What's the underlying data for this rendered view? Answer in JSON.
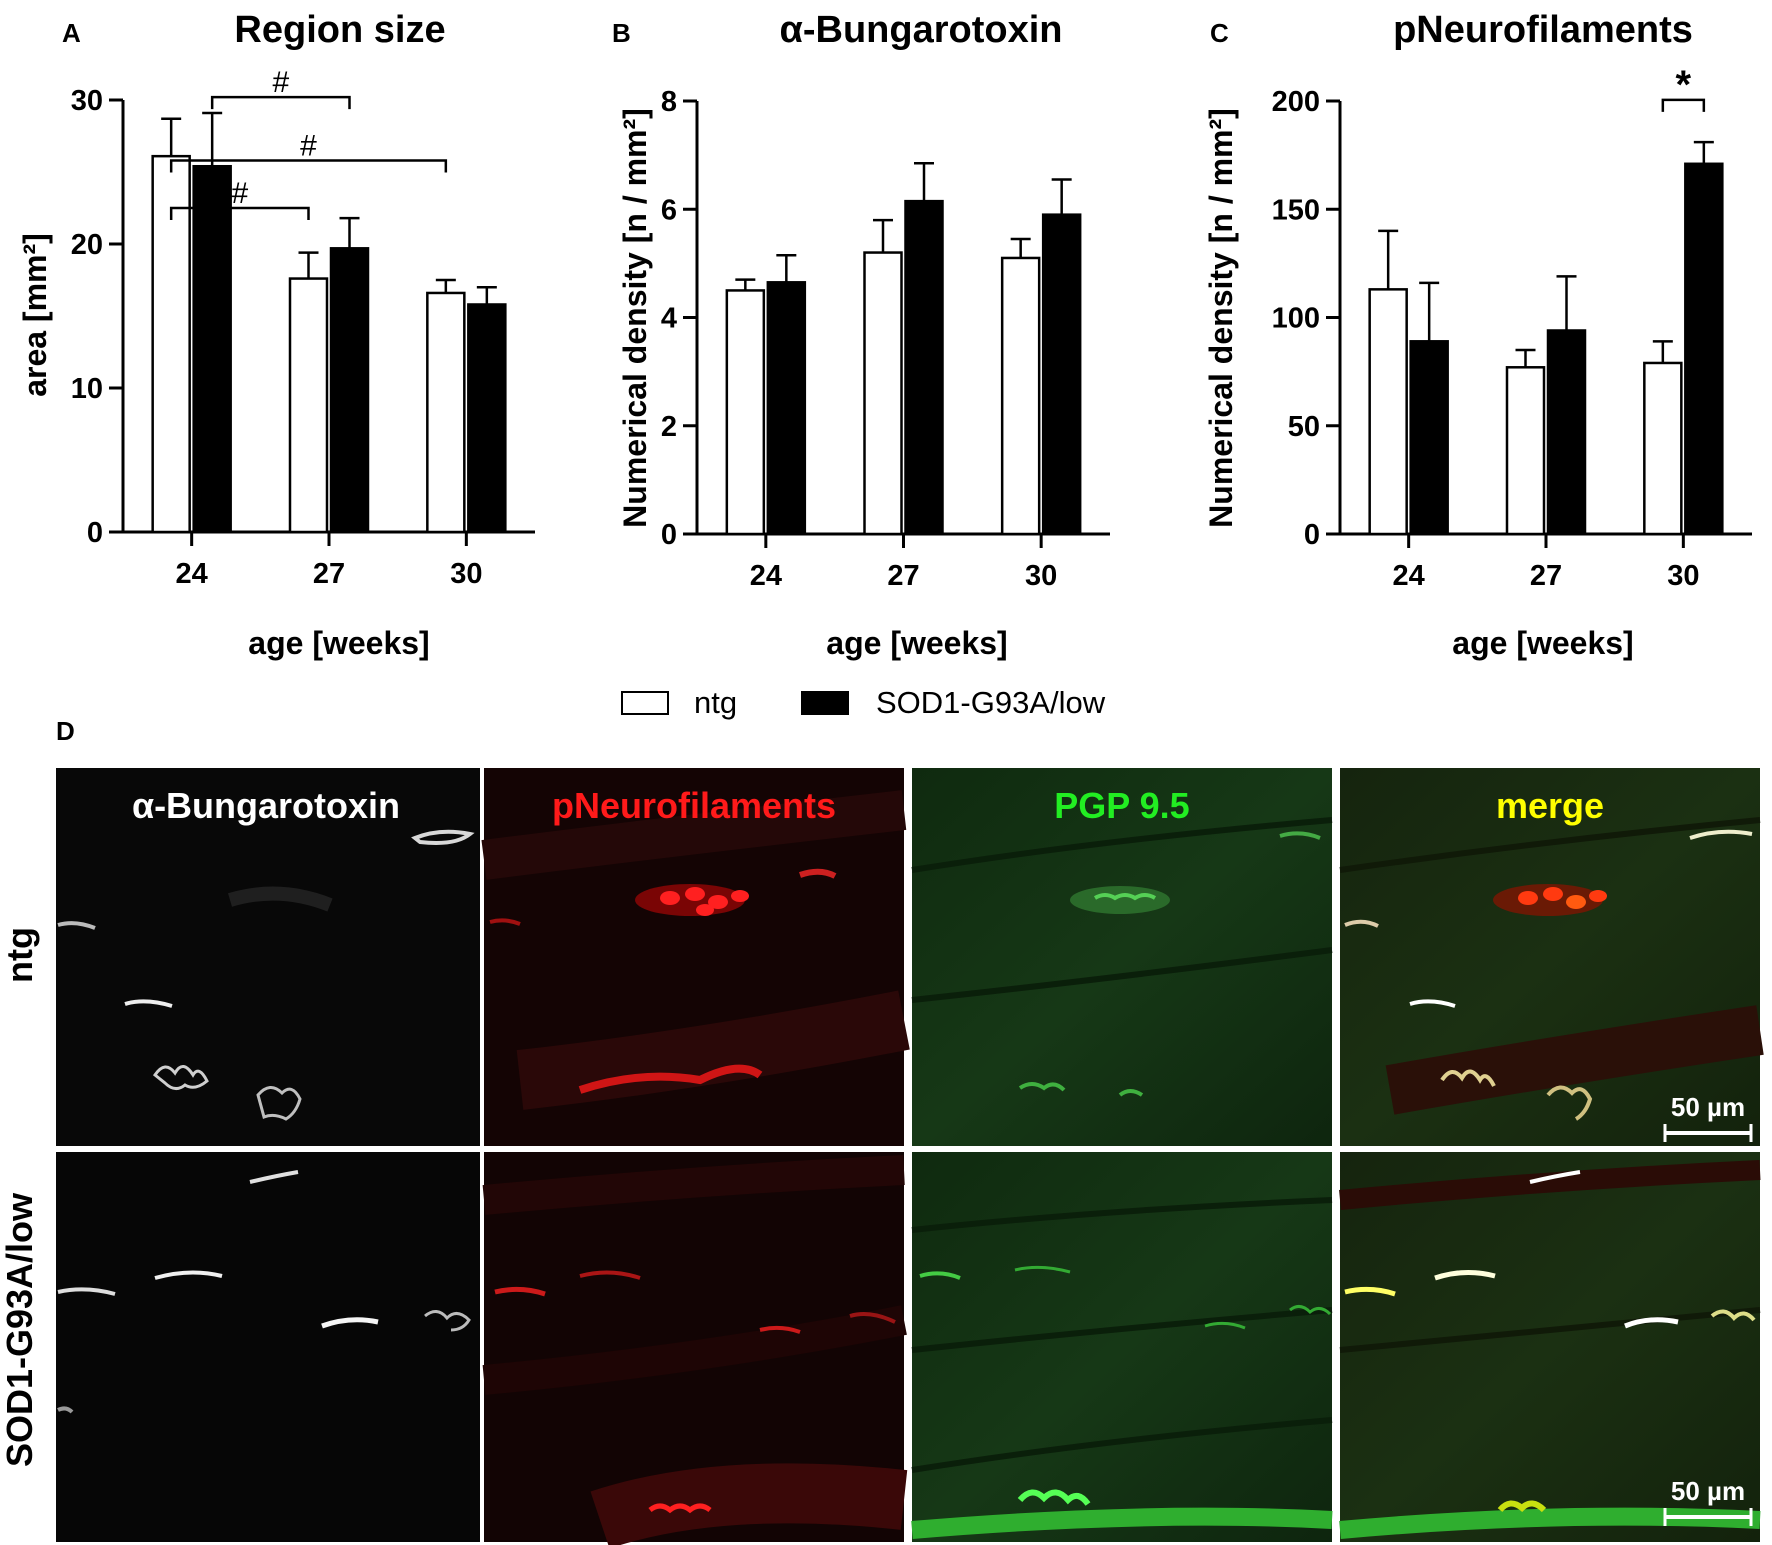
{
  "panel_labels": {
    "A": "A",
    "B": "B",
    "C": "C",
    "D": "D"
  },
  "chart_data": [
    {
      "type": "bar",
      "panel": "A",
      "title": "Region size",
      "xlabel": "age [weeks]",
      "ylabel": "area [mm²]",
      "categories": [
        "24",
        "27",
        "30"
      ],
      "ylim": [
        0,
        30
      ],
      "yticks": [
        0,
        10,
        20,
        30
      ],
      "series": [
        {
          "name": "ntg",
          "values": [
            26.1,
            17.6,
            16.6
          ],
          "errors": [
            2.6,
            1.8,
            0.9
          ]
        },
        {
          "name": "SOD1-G93A/low",
          "values": [
            25.4,
            19.7,
            15.8
          ],
          "errors": [
            3.7,
            2.1,
            1.2
          ]
        }
      ],
      "annotations": [
        {
          "text": "#",
          "from": {
            "category": "24",
            "series": "SOD1-G93A/low"
          },
          "to": {
            "category": "27",
            "series": "SOD1-G93A/low"
          }
        },
        {
          "text": "#",
          "from": {
            "category": "24",
            "series": "ntg"
          },
          "to": {
            "category": "30",
            "series": "ntg"
          }
        },
        {
          "text": "#",
          "from": {
            "category": "24",
            "series": "ntg"
          },
          "to": {
            "category": "27",
            "series": "ntg"
          }
        }
      ]
    },
    {
      "type": "bar",
      "panel": "B",
      "title": "α-Bungarotoxin",
      "xlabel": "age [weeks]",
      "ylabel": "Numerical density [n / mm²]",
      "categories": [
        "24",
        "27",
        "30"
      ],
      "ylim": [
        0,
        8
      ],
      "yticks": [
        0,
        2,
        4,
        6,
        8
      ],
      "series": [
        {
          "name": "ntg",
          "values": [
            4.5,
            5.2,
            5.1
          ],
          "errors": [
            0.2,
            0.6,
            0.35
          ]
        },
        {
          "name": "SOD1-G93A/low",
          "values": [
            4.65,
            6.15,
            5.9
          ],
          "errors": [
            0.5,
            0.7,
            0.65
          ]
        }
      ],
      "annotations": []
    },
    {
      "type": "bar",
      "panel": "C",
      "title": "pNeurofilaments",
      "xlabel": "age [weeks]",
      "ylabel": "Numerical density [n / mm²]",
      "categories": [
        "24",
        "27",
        "30"
      ],
      "ylim": [
        0,
        200
      ],
      "yticks": [
        0,
        50,
        100,
        150,
        200
      ],
      "series": [
        {
          "name": "ntg",
          "values": [
            113,
            77,
            79
          ],
          "errors": [
            27,
            8,
            10
          ]
        },
        {
          "name": "SOD1-G93A/low",
          "values": [
            89,
            94,
            171
          ],
          "errors": [
            27,
            25,
            10
          ]
        }
      ],
      "annotations": [
        {
          "text": "*",
          "from": {
            "category": "30",
            "series": "ntg"
          },
          "to": {
            "category": "30",
            "series": "SOD1-G93A/low"
          }
        }
      ]
    }
  ],
  "legend": [
    {
      "label": "ntg",
      "color": "#ffffff"
    },
    {
      "label": "SOD1-G93A/low",
      "color": "#000000"
    }
  ],
  "micrographs": {
    "columns": [
      {
        "label": "α-Bungarotoxin",
        "color": "#ffffff"
      },
      {
        "label": "pNeurofilaments",
        "color": "#ff1a1a"
      },
      {
        "label": "PGP 9.5",
        "color": "#22ee22"
      },
      {
        "label": "merge",
        "color": "#ffff00"
      }
    ],
    "rows": [
      {
        "label": "ntg"
      },
      {
        "label": "SOD1-G93A/low"
      }
    ],
    "scale_bar": "50 µm"
  }
}
